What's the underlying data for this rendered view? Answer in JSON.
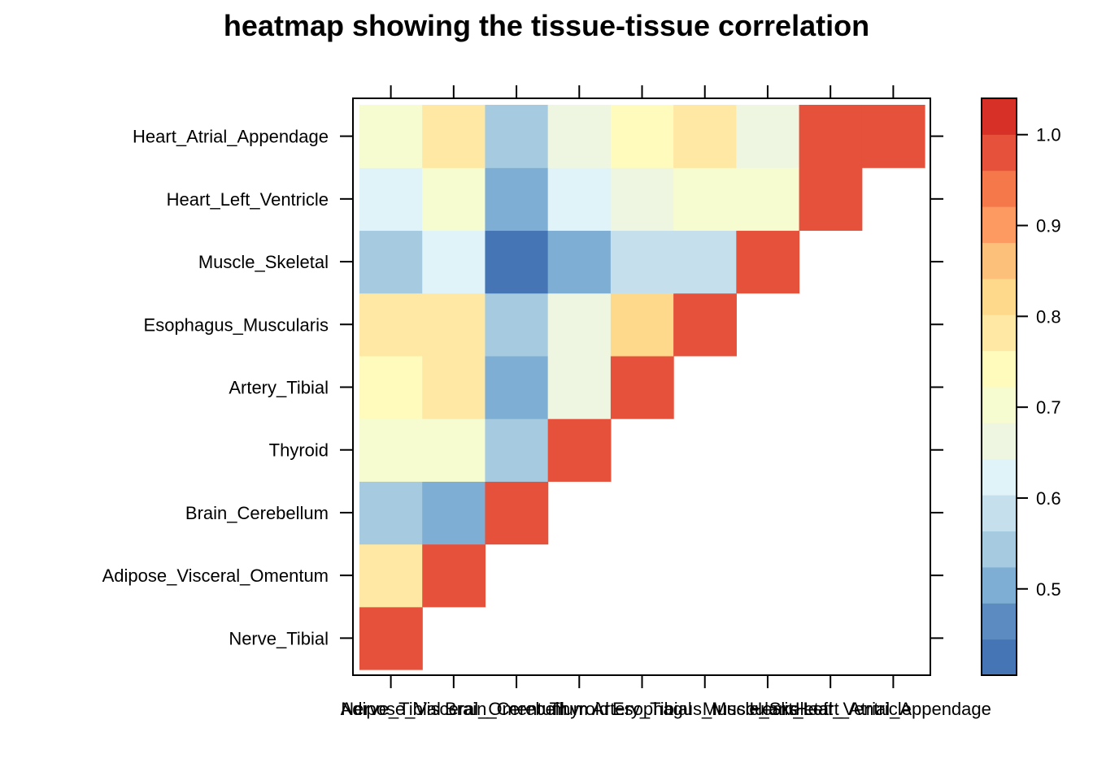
{
  "chart_data": {
    "type": "heatmap",
    "title": "heatmap showing the tissue-tissue correlation",
    "xlabel": "",
    "ylabel": "",
    "categories": [
      "Nerve_Tibial",
      "Adipose_Visceral_Omentum",
      "Brain_Cerebellum",
      "Thyroid",
      "Artery_Tibial",
      "Esophagus_Muscularis",
      "Muscle_Skeletal",
      "Heart_Left_Ventricle",
      "Heart_Atrial_Appendage"
    ],
    "matrix": [
      [
        1.0,
        0.78,
        0.53,
        0.7,
        0.74,
        0.78,
        0.53,
        0.62,
        0.7
      ],
      [
        0.78,
        1.0,
        0.49,
        0.7,
        0.77,
        0.78,
        0.62,
        0.7,
        0.78
      ],
      [
        0.53,
        0.49,
        1.0,
        0.53,
        0.49,
        0.53,
        0.42,
        0.49,
        0.53
      ],
      [
        0.7,
        0.7,
        0.53,
        1.0,
        0.66,
        0.66,
        0.49,
        0.62,
        0.66
      ],
      [
        0.74,
        0.77,
        0.49,
        0.66,
        1.0,
        0.81,
        0.57,
        0.66,
        0.74
      ],
      [
        0.78,
        0.78,
        0.53,
        0.66,
        0.81,
        1.0,
        0.57,
        0.7,
        0.78
      ],
      [
        0.53,
        0.62,
        0.42,
        0.49,
        0.57,
        0.57,
        1.0,
        0.7,
        0.66
      ],
      [
        0.62,
        0.7,
        0.49,
        0.62,
        0.66,
        0.7,
        0.7,
        1.0,
        0.97
      ],
      [
        0.7,
        0.78,
        0.53,
        0.66,
        0.74,
        0.78,
        0.66,
        0.97,
        1.0
      ]
    ],
    "colorbar": {
      "min": 0.405,
      "max": 1.04,
      "ticks": [
        "0.5",
        "0.6",
        "0.7",
        "0.8",
        "0.9",
        "1.0"
      ],
      "tick_values": [
        0.5,
        0.6,
        0.7,
        0.8,
        0.9,
        1.0
      ],
      "colors": [
        "#4575b4",
        "#5b8bc0",
        "#7eaed3",
        "#a6cbe1",
        "#c5dfec",
        "#e0f3f8",
        "#eef6e1",
        "#f6fbd0",
        "#fefbbd",
        "#fee8a3",
        "#fed98c",
        "#fdc07a",
        "#fc9a61",
        "#f5784b",
        "#e5513b",
        "#d73027"
      ]
    }
  }
}
